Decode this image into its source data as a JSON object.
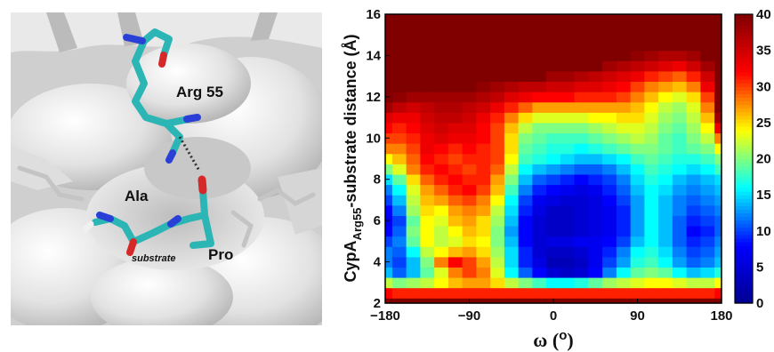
{
  "molecule_panel": {
    "labels": {
      "arg": "Arg 55",
      "ala": "Ala",
      "pro": "Pro",
      "substrate": "substrate"
    }
  },
  "chart_data": {
    "type": "heatmap",
    "title": "",
    "xlabel": "ω (o)",
    "xlabel_parts": {
      "symbol": "ω",
      "unit_open": "(",
      "unit": "o",
      "unit_close": ")"
    },
    "ylabel": "CypA Arg55 -substrate distance (Å)",
    "ylabel_parts": {
      "main": "CypA",
      "subscript": "Arg55",
      "rest": "-substrate distance (Å)"
    },
    "xlim": [
      -180,
      180
    ],
    "ylim": [
      2,
      16
    ],
    "xticks": [
      "−180",
      "−90",
      "0",
      "90",
      "180"
    ],
    "yticks": [
      "2",
      "4",
      "6",
      "8",
      "10",
      "12",
      "14",
      "16"
    ],
    "colorbar": {
      "range": [
        0,
        40
      ],
      "ticks": [
        "0",
        "5",
        "10",
        "15",
        "20",
        "25",
        "30",
        "35",
        "40"
      ],
      "colormap": [
        "#00008f",
        "#0000ff",
        "#00ffff",
        "#ffff00",
        "#ff0000",
        "#800000"
      ]
    },
    "x": [
      -180,
      -165,
      -150,
      -135,
      -120,
      -105,
      -90,
      -75,
      -60,
      -45,
      -30,
      -15,
      0,
      15,
      30,
      45,
      60,
      75,
      90,
      105,
      120,
      135,
      150,
      165,
      180
    ],
    "y": [
      2,
      2.5,
      3,
      3.5,
      4,
      4.5,
      5,
      5.5,
      6,
      6.5,
      7,
      7.5,
      8,
      8.5,
      9,
      9.5,
      10,
      10.5,
      11,
      11.5,
      12,
      12.5,
      13,
      13.5,
      14,
      14.5,
      15,
      15.5,
      16
    ],
    "z": [
      [
        40,
        40,
        40,
        40,
        40,
        40,
        40,
        40,
        40,
        40,
        40,
        40,
        40,
        40,
        40,
        40,
        40,
        40,
        40,
        40,
        40,
        40,
        40,
        40,
        40
      ],
      [
        32,
        31,
        31,
        31,
        31,
        31,
        31,
        31,
        31,
        31,
        31,
        31,
        31,
        31,
        31,
        31,
        31,
        31,
        31,
        31,
        31,
        31,
        31,
        31,
        32
      ],
      [
        22,
        20,
        21,
        22,
        24,
        26,
        27,
        27,
        25,
        22,
        20,
        18,
        16,
        16,
        17,
        19,
        21,
        22,
        23,
        24,
        24,
        23,
        22,
        22,
        24
      ],
      [
        14,
        11,
        14,
        19,
        23,
        28,
        30,
        28,
        23,
        16,
        11,
        8,
        5,
        4,
        5,
        8,
        12,
        16,
        19,
        20,
        19,
        16,
        14,
        15,
        17
      ],
      [
        12,
        10,
        14,
        20,
        28,
        32,
        30,
        27,
        22,
        15,
        9,
        6,
        3,
        3,
        4,
        7,
        10,
        13,
        17,
        18,
        16,
        13,
        11,
        12,
        14
      ],
      [
        12,
        11,
        16,
        22,
        24,
        26,
        27,
        25,
        21,
        15,
        9,
        5,
        4,
        4,
        5,
        7,
        9,
        12,
        16,
        17,
        15,
        12,
        10,
        11,
        13
      ],
      [
        10,
        12,
        19,
        24,
        22,
        23,
        25,
        24,
        20,
        14,
        8,
        5,
        6,
        6,
        7,
        7,
        8,
        10,
        14,
        16,
        14,
        11,
        9,
        10,
        12
      ],
      [
        8,
        11,
        20,
        24,
        22,
        24,
        26,
        25,
        20,
        13,
        8,
        5,
        4,
        4,
        5,
        6,
        7,
        9,
        13,
        16,
        14,
        11,
        8,
        9,
        11
      ],
      [
        7,
        10,
        19,
        24,
        23,
        26,
        27,
        25,
        21,
        14,
        8,
        5,
        4,
        4,
        5,
        6,
        7,
        9,
        13,
        16,
        14,
        11,
        9,
        10,
        11
      ],
      [
        8,
        12,
        21,
        25,
        24,
        27,
        28,
        27,
        22,
        15,
        9,
        6,
        4,
        4,
        5,
        6,
        7,
        9,
        13,
        16,
        14,
        12,
        10,
        11,
        12
      ],
      [
        10,
        14,
        22,
        26,
        27,
        29,
        30,
        28,
        24,
        16,
        10,
        7,
        6,
        5,
        5,
        6,
        8,
        10,
        13,
        16,
        14,
        12,
        11,
        12,
        13
      ],
      [
        12,
        16,
        23,
        27,
        29,
        31,
        32,
        30,
        26,
        18,
        12,
        9,
        8,
        7,
        6,
        7,
        9,
        11,
        14,
        16,
        15,
        13,
        12,
        13,
        14
      ],
      [
        15,
        19,
        25,
        29,
        31,
        32,
        31,
        31,
        27,
        20,
        14,
        11,
        10,
        9,
        8,
        9,
        10,
        12,
        15,
        17,
        16,
        14,
        13,
        14,
        15
      ],
      [
        20,
        23,
        28,
        31,
        32,
        31,
        30,
        31,
        29,
        22,
        16,
        14,
        13,
        12,
        11,
        11,
        12,
        14,
        16,
        18,
        17,
        16,
        15,
        16,
        18
      ],
      [
        24,
        26,
        29,
        32,
        31,
        30,
        31,
        31,
        30,
        24,
        18,
        17,
        16,
        15,
        14,
        14,
        15,
        16,
        18,
        19,
        18,
        17,
        17,
        18,
        20
      ],
      [
        28,
        28,
        30,
        33,
        32,
        31,
        32,
        31,
        30,
        25,
        19,
        18,
        17,
        17,
        16,
        17,
        18,
        19,
        20,
        20,
        19,
        18,
        19,
        20,
        24
      ],
      [
        30,
        30,
        31,
        33,
        34,
        33,
        33,
        32,
        30,
        25,
        20,
        19,
        18,
        18,
        18,
        19,
        20,
        21,
        22,
        21,
        19,
        18,
        20,
        22,
        28
      ],
      [
        32,
        31,
        32,
        34,
        35,
        34,
        34,
        32,
        30,
        26,
        22,
        20,
        20,
        20,
        20,
        21,
        22,
        23,
        23,
        22,
        20,
        19,
        21,
        24,
        33
      ],
      [
        34,
        33,
        33,
        35,
        36,
        36,
        35,
        33,
        31,
        28,
        25,
        23,
        23,
        23,
        23,
        24,
        24,
        25,
        25,
        23,
        21,
        20,
        22,
        26,
        38
      ],
      [
        38,
        36,
        35,
        36,
        37,
        37,
        36,
        35,
        33,
        31,
        29,
        27,
        27,
        27,
        27,
        27,
        27,
        27,
        26,
        24,
        22,
        21,
        23,
        28,
        40
      ],
      [
        40,
        39,
        38,
        38,
        38,
        38,
        38,
        37,
        36,
        34,
        33,
        32,
        32,
        32,
        31,
        31,
        31,
        30,
        28,
        26,
        24,
        23,
        25,
        30,
        40
      ],
      [
        40,
        40,
        40,
        40,
        40,
        40,
        40,
        39,
        38,
        37,
        36,
        36,
        35,
        35,
        34,
        34,
        33,
        32,
        30,
        28,
        27,
        26,
        28,
        33,
        40
      ],
      [
        40,
        40,
        40,
        40,
        40,
        40,
        40,
        40,
        40,
        40,
        40,
        40,
        38,
        38,
        37,
        36,
        35,
        34,
        33,
        31,
        30,
        29,
        31,
        35,
        40
      ],
      [
        40,
        40,
        40,
        40,
        40,
        40,
        40,
        40,
        40,
        40,
        40,
        40,
        40,
        40,
        40,
        40,
        38,
        37,
        36,
        35,
        34,
        33,
        35,
        38,
        40
      ],
      [
        40,
        40,
        40,
        40,
        40,
        40,
        40,
        40,
        40,
        40,
        40,
        40,
        40,
        40,
        40,
        40,
        40,
        40,
        39,
        38,
        37,
        37,
        38,
        40,
        40
      ],
      [
        40,
        40,
        40,
        40,
        40,
        40,
        40,
        40,
        40,
        40,
        40,
        40,
        40,
        40,
        40,
        40,
        40,
        40,
        40,
        40,
        40,
        40,
        40,
        40,
        40
      ],
      [
        40,
        40,
        40,
        40,
        40,
        40,
        40,
        40,
        40,
        40,
        40,
        40,
        40,
        40,
        40,
        40,
        40,
        40,
        40,
        40,
        40,
        40,
        40,
        40,
        40
      ],
      [
        40,
        40,
        40,
        40,
        40,
        40,
        40,
        40,
        40,
        40,
        40,
        40,
        40,
        40,
        40,
        40,
        40,
        40,
        40,
        40,
        40,
        40,
        40,
        40,
        40
      ],
      [
        40,
        40,
        40,
        40,
        40,
        40,
        40,
        40,
        40,
        40,
        40,
        40,
        40,
        40,
        40,
        40,
        40,
        40,
        40,
        40,
        40,
        40,
        40,
        40,
        40
      ]
    ]
  }
}
